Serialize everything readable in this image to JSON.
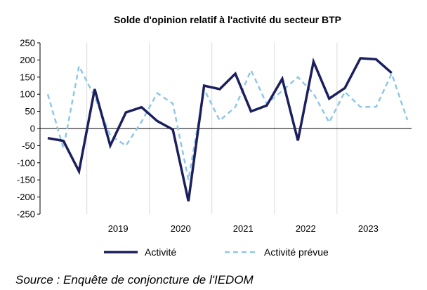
{
  "chart_data": {
    "type": "line",
    "title": "Solde d'opinion relatif à l'activité du secteur BTP",
    "ylim": [
      -250,
      250
    ],
    "yticks": [
      250,
      200,
      150,
      100,
      50,
      0,
      -50,
      -100,
      -150,
      -200,
      -250
    ],
    "grid": "vertical",
    "legend": "bottom",
    "x": [
      "2018-T2",
      "2018-T3",
      "2018-T4",
      "2019-T1",
      "2019-T2",
      "2019-T3",
      "2019-T4",
      "2020-T1",
      "2020-T2",
      "2020-T3",
      "2020-T4",
      "2021-T1",
      "2021-T2",
      "2021-T3",
      "2021-T4",
      "2022-T1",
      "2022-T2",
      "2022-T3",
      "2022-T4",
      "2023-T1",
      "2023-T2",
      "2023-T3",
      "2023-T4",
      "2024-T1"
    ],
    "year_labels": [
      {
        "label": "2019",
        "at": "2019-T1"
      },
      {
        "label": "2020",
        "at": "2020-T1"
      },
      {
        "label": "2021",
        "at": "2021-T1"
      },
      {
        "label": "2022",
        "at": "2022-T1"
      },
      {
        "label": "2023",
        "at": "2023-T1"
      }
    ],
    "series": [
      {
        "name": "Activité",
        "color": "#1b1f5e",
        "style": "solid",
        "values": [
          -28,
          -36,
          -125,
          115,
          -50,
          47,
          62,
          22,
          -3,
          -212,
          125,
          115,
          160,
          50,
          67,
          145,
          -35,
          195,
          87,
          118,
          205,
          202,
          162,
          null
        ]
      },
      {
        "name": "Activité prévue",
        "color": "#8ec8e6",
        "style": "dashed",
        "values": [
          100,
          -58,
          182,
          93,
          -20,
          -50,
          20,
          103,
          73,
          -150,
          115,
          23,
          63,
          170,
          72,
          110,
          150,
          102,
          18,
          107,
          63,
          63,
          160,
          25
        ]
      }
    ]
  },
  "source": "Source : Enquête de conjoncture de l'IEDOM"
}
